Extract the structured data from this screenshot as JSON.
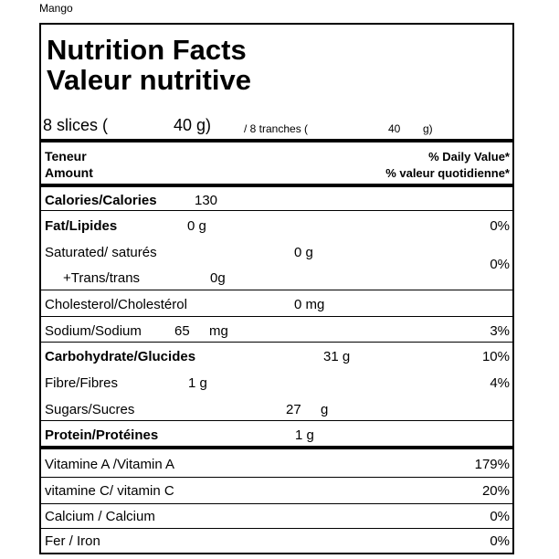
{
  "product_name": "Mango",
  "title_en": "Nutrition Facts",
  "title_fr": "Valeur nutritive",
  "serving": {
    "en_label": "8 slices (",
    "en_amount": "40 g)",
    "fr_label": "/ 8 tranches (",
    "fr_amount": "40",
    "fr_unit": "g)"
  },
  "header": {
    "amount_fr": "Teneur",
    "amount_en": "Amount",
    "dv_en": "% Daily Value*",
    "dv_fr": "% valeur quotidienne*"
  },
  "nutrients": {
    "calories": {
      "label": "Calories/Calories",
      "amount": "130"
    },
    "fat": {
      "label": "Fat/Lipides",
      "amount": "0 g",
      "dv": "0%"
    },
    "saturated": {
      "label": "Saturated/ saturés",
      "amount": "0 g"
    },
    "trans": {
      "label": "+Trans/trans",
      "amount": "0g"
    },
    "sat_trans_dv": "0%",
    "cholesterol": {
      "label": "Cholesterol/Cholestérol",
      "amount": "0 mg"
    },
    "sodium": {
      "label": "Sodium/Sodium",
      "amount": "65",
      "unit": "mg",
      "dv": "3%"
    },
    "carbohydrate": {
      "label": "Carbohydrate/Glucides",
      "amount": "31 g",
      "dv": "10%"
    },
    "fibre": {
      "label": "Fibre/Fibres",
      "amount": "1 g",
      "dv": "4%"
    },
    "sugars": {
      "label": "Sugars/Sucres",
      "amount": "27",
      "unit": "g"
    },
    "protein": {
      "label": "Protein/Protéines",
      "amount": "1 g"
    }
  },
  "vitamins": {
    "vitamin_a": {
      "label": "Vitamine A /Vitamin A",
      "dv": "179%"
    },
    "vitamin_c": {
      "label": "vitamine C/ vitamin C",
      "dv": "20%"
    },
    "calcium": {
      "label": "Calcium / Calcium",
      "dv": "0%"
    },
    "iron": {
      "label": "Fer / Iron",
      "dv": "0%"
    }
  }
}
